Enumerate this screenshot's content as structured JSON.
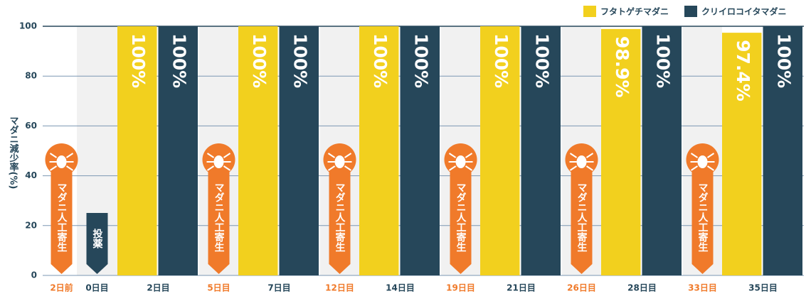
{
  "chart_data": {
    "type": "bar",
    "y_axis_label": "マダニ減少率(%)",
    "categories": [
      "2日前",
      "0日目",
      "2日目",
      "5日目",
      "7日目",
      "12日目",
      "14日目",
      "19日目",
      "21日目",
      "26日目",
      "28日目",
      "33日目",
      "35日目"
    ],
    "events": [
      "マダニ人工寄生",
      "投薬",
      null,
      "マダニ人工寄生",
      null,
      "マダニ人工寄生",
      null,
      "マダニ人工寄生",
      null,
      "マダニ人工寄生",
      null,
      "マダニ人工寄生",
      null
    ],
    "series": [
      {
        "name": "フタトゲチマダニ",
        "color": "#f2d01e",
        "values": [
          null,
          null,
          100,
          null,
          100,
          null,
          100,
          null,
          100,
          null,
          98.9,
          null,
          97.4
        ],
        "value_labels": [
          null,
          null,
          "100%",
          null,
          "100%",
          null,
          "100%",
          null,
          "100%",
          null,
          "98.9%",
          null,
          "97.4%"
        ]
      },
      {
        "name": "クリイロコイタマダニ",
        "color": "#26475a",
        "values": [
          null,
          null,
          100,
          null,
          100,
          null,
          100,
          null,
          100,
          null,
          100,
          null,
          100
        ],
        "value_labels": [
          null,
          null,
          "100%",
          null,
          "100%",
          null,
          "100%",
          null,
          "100%",
          null,
          "100%",
          null,
          "100%"
        ]
      }
    ],
    "ylim": [
      0,
      100
    ],
    "yticks": [
      0,
      20,
      40,
      60,
      80,
      100
    ],
    "grid": true,
    "legend": "top-right"
  }
}
